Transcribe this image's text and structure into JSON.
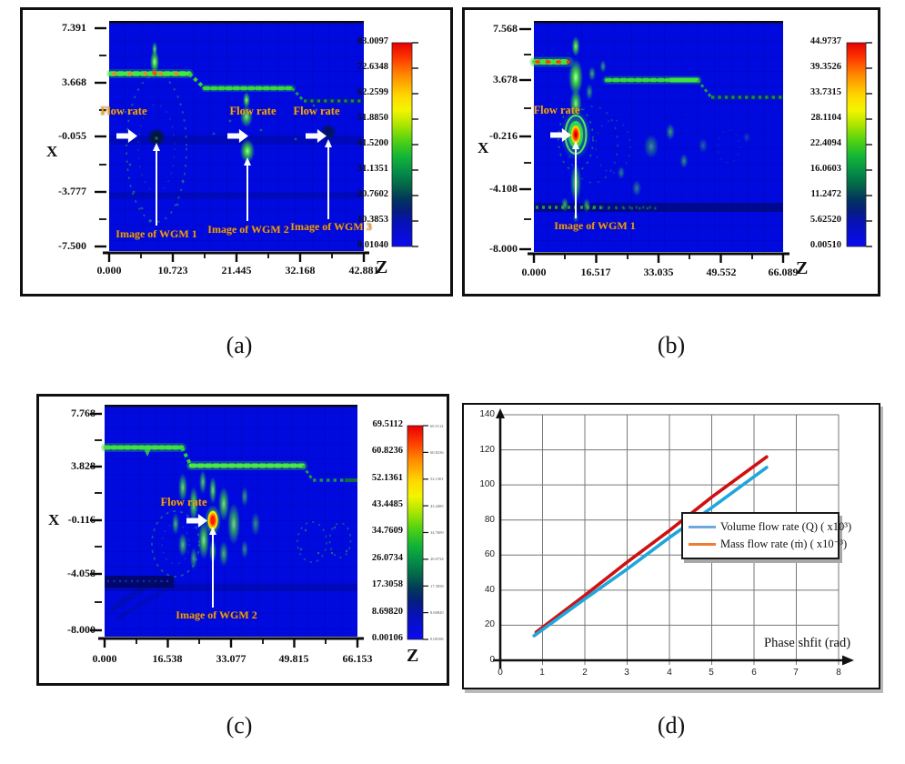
{
  "captions": {
    "a": "(a)",
    "b": "(b)",
    "c": "(c)",
    "d": "(d)"
  },
  "panels": {
    "a": {
      "x_axis_letter": "X",
      "z_axis_letter": "Z",
      "yticks": [
        "7.391",
        "3.668",
        "-0.055",
        "-3.777",
        "-7.500"
      ],
      "zticks": [
        "0.000",
        "10.723",
        "21.445",
        "32.168",
        "42.881"
      ],
      "colorbar": [
        "83.0097",
        "72.6348",
        "62.2599",
        "51.8850",
        "41.5200",
        "31.1351",
        "20.7602",
        "10.3853",
        "0.01040"
      ],
      "flow_labels": [
        "Flow rate",
        "Flow rate",
        "Flow rate"
      ],
      "wgm_labels": [
        "Image of WGM 1",
        "Image of WGM 2",
        "Image of WGM 3"
      ]
    },
    "b": {
      "x_axis_letter": "X",
      "z_axis_letter": "Z",
      "yticks": [
        "7.568",
        "3.678",
        "-0.216",
        "-4.108",
        "-8.000"
      ],
      "zticks": [
        "0.000",
        "16.517",
        "33.035",
        "49.552",
        "66.089"
      ],
      "colorbar": [
        "44.9737",
        "39.3526",
        "33.7315",
        "28.1104",
        "22.4094",
        "16.0603",
        "11.2472",
        "5.62520",
        "0.00510"
      ],
      "flow_labels": [
        "Flow rate"
      ],
      "wgm_labels": [
        "Image of WGM 1"
      ]
    },
    "c": {
      "x_axis_letter": "X",
      "z_axis_letter": "Z",
      "yticks": [
        "7.768",
        "3.828",
        "-0.116",
        "-4.058",
        "-8.000"
      ],
      "zticks": [
        "0.000",
        "16.538",
        "33.077",
        "49.815",
        "66.153"
      ],
      "colorbar": [
        "69.5112",
        "60.8236",
        "52.1361",
        "43.4485",
        "34.7609",
        "26.0734",
        "17.3058",
        "8.69820",
        "0.00106"
      ],
      "flow_labels": [
        "Flow rate"
      ],
      "wgm_labels": [
        "Image of WGM 2"
      ]
    },
    "d": {
      "yticks": [
        "0",
        "20",
        "40",
        "60",
        "80",
        "100",
        "120",
        "140"
      ],
      "xticks": [
        "0",
        "1",
        "2",
        "3",
        "4",
        "5",
        "6",
        "7",
        "8"
      ],
      "xlabel": "Phase shfit (rad)",
      "legend": [
        {
          "label": "Volume flow rate (Q) ( x10³)"
        },
        {
          "label": "Mass flow rate (ṁ) ( x10⁻³)"
        }
      ]
    }
  },
  "chart_data": [
    {
      "type": "heatmap",
      "panel": "a",
      "xlabel": "Z",
      "ylabel": "X",
      "x_ticks": [
        0.0,
        10.723,
        21.445,
        32.168,
        42.881
      ],
      "y_ticks": [
        7.391,
        3.668,
        -0.055,
        -3.777,
        -7.5
      ],
      "colorbar_range": [
        0.0104,
        83.0097
      ],
      "colorbar_ticks": [
        83.0097,
        72.6348,
        62.2599,
        51.885,
        41.52,
        31.1351,
        20.7602,
        10.3853,
        0.0104
      ],
      "annotations": [
        "Flow rate",
        "Flow rate",
        "Flow rate",
        "Image of WGM 1",
        "Image of WGM 2",
        "Image of WGM 3"
      ]
    },
    {
      "type": "heatmap",
      "panel": "b",
      "xlabel": "Z",
      "ylabel": "X",
      "x_ticks": [
        0.0,
        16.517,
        33.035,
        49.552,
        66.089
      ],
      "y_ticks": [
        7.568,
        3.678,
        -0.216,
        -4.108,
        -8.0
      ],
      "colorbar_range": [
        0.0051,
        44.9737
      ],
      "colorbar_ticks": [
        44.9737,
        39.3526,
        33.7315,
        28.1104,
        22.4094,
        16.0603,
        11.2472,
        5.6252,
        0.0051
      ],
      "annotations": [
        "Flow rate",
        "Image of WGM 1"
      ]
    },
    {
      "type": "heatmap",
      "panel": "c",
      "xlabel": "Z",
      "ylabel": "X",
      "x_ticks": [
        0.0,
        16.538,
        33.077,
        49.815,
        66.153
      ],
      "y_ticks": [
        7.768,
        3.828,
        -0.116,
        -4.058,
        -8.0
      ],
      "colorbar_range": [
        0.00106,
        69.5112
      ],
      "colorbar_ticks": [
        69.5112,
        60.8236,
        52.1361,
        43.4485,
        34.7609,
        26.0734,
        17.3058,
        8.6982,
        0.00106
      ],
      "annotations": [
        "Flow rate",
        "Image of WGM 2"
      ]
    },
    {
      "type": "line",
      "panel": "d",
      "title": "",
      "xlabel": "Phase shfit (rad)",
      "ylabel": "",
      "xlim": [
        0,
        8
      ],
      "ylim": [
        0,
        140
      ],
      "xticks": [
        0,
        1,
        2,
        3,
        4,
        5,
        6,
        7,
        8
      ],
      "yticks": [
        0,
        20,
        40,
        60,
        80,
        100,
        120,
        140
      ],
      "grid": true,
      "legend_position": "center-right",
      "series": [
        {
          "name": "Volume flow rate (Q) ( x10³)",
          "line_color": "#1fa6dc",
          "legend_swatch": "#6fa8dc",
          "x": [
            0.8,
            2,
            3,
            4,
            5,
            6.3
          ],
          "y": [
            14,
            35,
            52,
            70,
            87,
            110
          ]
        },
        {
          "name": "Mass flow rate (ṁ) ( x10⁻³)",
          "line_color": "#cf1010",
          "legend_swatch": "#ed7d31",
          "x": [
            0.85,
            2,
            3,
            4,
            5,
            6.3
          ],
          "y": [
            16,
            37,
            56,
            74,
            93,
            116
          ]
        }
      ]
    }
  ]
}
